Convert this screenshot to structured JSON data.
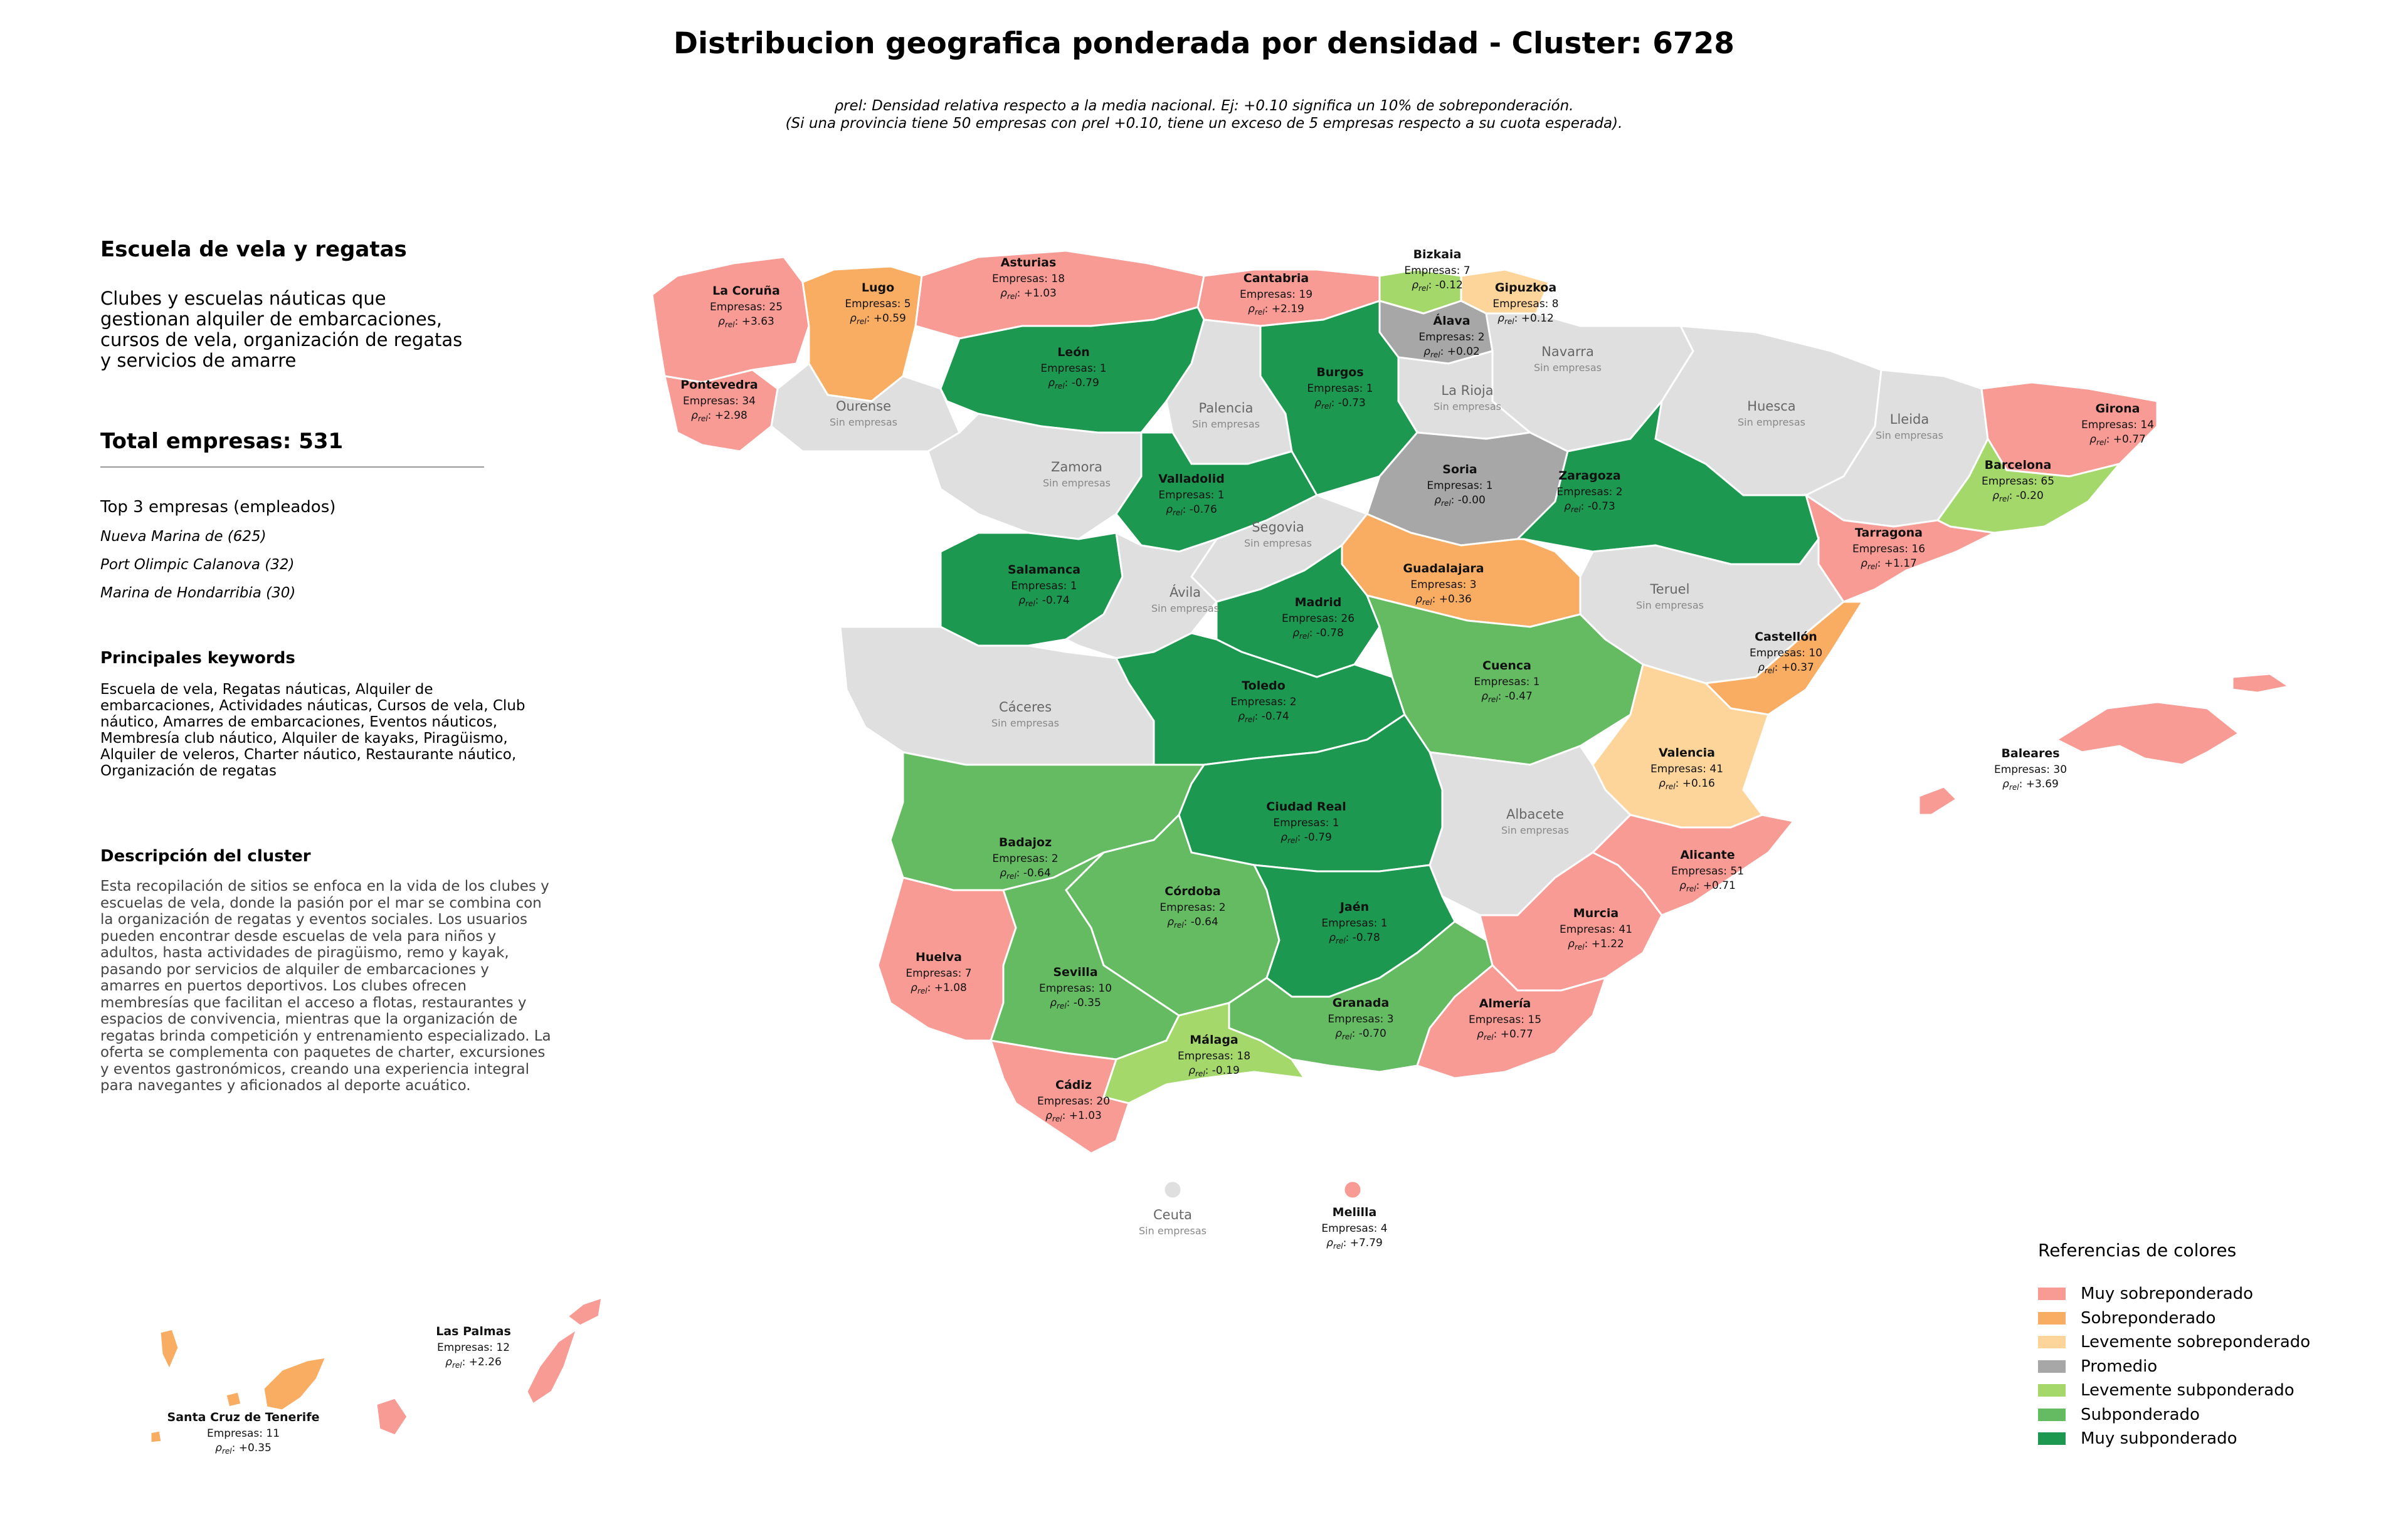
{
  "title": "Distribucion geografica ponderada por densidad - Cluster: 6728",
  "subtitle_line1": "ρrel: Densidad relativa respecto a la media nacional. Ej: +0.10 significa un 10% de sobreponderación.",
  "subtitle_line2": "(Si una provincia tiene 50 empresas con ρrel +0.10, tiene un exceso de 5 empresas respecto a su cuota esperada).",
  "panel": {
    "cluster_name": "Escuela de vela y regatas",
    "cluster_summary": "Clubes y escuelas náuticas que gestionan alquiler de embarcaciones, cursos de vela, organización de regatas y servicios de amarre",
    "total": "Total empresas: 531",
    "top_heading": "Top 3 empresas (empleados)",
    "top_companies": [
      "Nueva Marina de (625)",
      "Port Olimpic Calanova (32)",
      "Marina de Hondarribia (30)"
    ],
    "keywords_heading": "Principales keywords",
    "keywords": "Escuela de vela, Regatas náuticas, Alquiler de embarcaciones, Actividades náuticas, Cursos de vela, Club náutico, Amarres de embarcaciones, Eventos náuticos, Membresía club náutico, Alquiler de kayaks, Piragüismo, Alquiler de veleros, Charter náutico, Restaurante náutico, Organización de regatas",
    "description_heading": "Descripción del cluster",
    "description": "Esta recopilación de sitios se enfoca en la vida de los clubes y escuelas de vela, donde la pasión por el mar se combina con la organización de regatas y eventos sociales. Los usuarios pueden encontrar desde escuelas de vela para niños y adultos, hasta actividades de piragüismo, remo y kayak, pasando por servicios de alquiler de embarcaciones y amarres en puertos deportivos. Los clubes ofrecen membresías que facilitan el acceso a flotas, restaurantes y espacios de convivencia, mientras que la organización de regatas brinda competición y entrenamiento especializado. La oferta se complementa con paquetes de charter, excursiones y eventos gastronómicos, creando una experiencia integral para navegantes y aficionados al deporte acuático."
  },
  "colors": {
    "muy_sobre": "#f89b94",
    "sobre": "#f9ad63",
    "lev_sobre": "#fdd59a",
    "promedio": "#a7a7a7",
    "lev_sub": "#a5d86b",
    "sub": "#65bb61",
    "muy_sub": "#1c9850",
    "sin": "#dfdfdf"
  },
  "legend": {
    "title": "Referencias de colores",
    "items": [
      {
        "label": "Muy sobreponderado",
        "color": "#f89b94"
      },
      {
        "label": "Sobreponderado",
        "color": "#f9ad63"
      },
      {
        "label": "Levemente sobreponderado",
        "color": "#fdd59a"
      },
      {
        "label": "Promedio",
        "color": "#a7a7a7"
      },
      {
        "label": "Levemente subponderado",
        "color": "#a5d86b"
      },
      {
        "label": "Subponderado",
        "color": "#65bb61"
      },
      {
        "label": "Muy subponderado",
        "color": "#1c9850"
      }
    ]
  },
  "provinces": [
    {
      "name": "La Coruña",
      "count": "Empresas: 25",
      "rho": "+3.63",
      "cat": "muy_sobre"
    },
    {
      "name": "Lugo",
      "count": "Empresas: 5",
      "rho": "+0.59",
      "cat": "sobre"
    },
    {
      "name": "Asturias",
      "count": "Empresas: 18",
      "rho": "+1.03",
      "cat": "muy_sobre"
    },
    {
      "name": "Cantabria",
      "count": "Empresas: 19",
      "rho": "+2.19",
      "cat": "muy_sobre"
    },
    {
      "name": "Bizkaia",
      "count": "Empresas: 7",
      "rho": "-0.12",
      "cat": "lev_sub"
    },
    {
      "name": "Gipuzkoa",
      "count": "Empresas: 8",
      "rho": "+0.12",
      "cat": "lev_sobre"
    },
    {
      "name": "Álava",
      "count": "Empresas: 2",
      "rho": "+0.02",
      "cat": "promedio"
    },
    {
      "name": "Pontevedra",
      "count": "Empresas: 34",
      "rho": "+2.98",
      "cat": "muy_sobre"
    },
    {
      "name": "León",
      "count": "Empresas: 1",
      "rho": "-0.79",
      "cat": "muy_sub"
    },
    {
      "name": "Burgos",
      "count": "Empresas: 1",
      "rho": "-0.73",
      "cat": "muy_sub"
    },
    {
      "name": "Girona",
      "count": "Empresas: 14",
      "rho": "+0.77",
      "cat": "muy_sobre"
    },
    {
      "name": "Barcelona",
      "count": "Empresas: 65",
      "rho": "-0.20",
      "cat": "lev_sub"
    },
    {
      "name": "Valladolid",
      "count": "Empresas: 1",
      "rho": "-0.76",
      "cat": "muy_sub"
    },
    {
      "name": "Soria",
      "count": "Empresas: 1",
      "rho": "-0.00",
      "cat": "promedio"
    },
    {
      "name": "Zaragoza",
      "count": "Empresas: 2",
      "rho": "-0.73",
      "cat": "muy_sub"
    },
    {
      "name": "Tarragona",
      "count": "Empresas: 16",
      "rho": "+1.17",
      "cat": "muy_sobre"
    },
    {
      "name": "Salamanca",
      "count": "Empresas: 1",
      "rho": "-0.74",
      "cat": "muy_sub"
    },
    {
      "name": "Guadalajara",
      "count": "Empresas: 3",
      "rho": "+0.36",
      "cat": "sobre"
    },
    {
      "name": "Madrid",
      "count": "Empresas: 26",
      "rho": "-0.78",
      "cat": "muy_sub"
    },
    {
      "name": "Castellón",
      "count": "Empresas: 10",
      "rho": "+0.37",
      "cat": "sobre"
    },
    {
      "name": "Cuenca",
      "count": "Empresas: 1",
      "rho": "-0.47",
      "cat": "sub"
    },
    {
      "name": "Toledo",
      "count": "Empresas: 2",
      "rho": "-0.74",
      "cat": "muy_sub"
    },
    {
      "name": "Valencia",
      "count": "Empresas: 41",
      "rho": "+0.16",
      "cat": "lev_sobre"
    },
    {
      "name": "Baleares",
      "count": "Empresas: 30",
      "rho": "+3.69",
      "cat": "muy_sobre"
    },
    {
      "name": "Ciudad Real",
      "count": "Empresas: 1",
      "rho": "-0.79",
      "cat": "muy_sub"
    },
    {
      "name": "Badajoz",
      "count": "Empresas: 2",
      "rho": "-0.64",
      "cat": "sub"
    },
    {
      "name": "Alicante",
      "count": "Empresas: 51",
      "rho": "+0.71",
      "cat": "muy_sobre"
    },
    {
      "name": "Córdoba",
      "count": "Empresas: 2",
      "rho": "-0.64",
      "cat": "sub"
    },
    {
      "name": "Jaén",
      "count": "Empresas: 1",
      "rho": "-0.78",
      "cat": "muy_sub"
    },
    {
      "name": "Murcia",
      "count": "Empresas: 41",
      "rho": "+1.22",
      "cat": "muy_sobre"
    },
    {
      "name": "Huelva",
      "count": "Empresas: 7",
      "rho": "+1.08",
      "cat": "muy_sobre"
    },
    {
      "name": "Sevilla",
      "count": "Empresas: 10",
      "rho": "-0.35",
      "cat": "sub"
    },
    {
      "name": "Granada",
      "count": "Empresas: 3",
      "rho": "-0.70",
      "cat": "sub"
    },
    {
      "name": "Almería",
      "count": "Empresas: 15",
      "rho": "+0.77",
      "cat": "muy_sobre"
    },
    {
      "name": "Málaga",
      "count": "Empresas: 18",
      "rho": "-0.19",
      "cat": "lev_sub"
    },
    {
      "name": "Cádiz",
      "count": "Empresas: 20",
      "rho": "+1.03",
      "cat": "muy_sobre"
    },
    {
      "name": "Melilla",
      "count": "Empresas: 4",
      "rho": "+7.79",
      "cat": "muy_sobre"
    },
    {
      "name": "Las Palmas",
      "count": "Empresas: 12",
      "rho": "+2.26",
      "cat": "muy_sobre"
    },
    {
      "name": "Santa Cruz de Tenerife",
      "count": "Empresas: 11",
      "rho": "+0.35",
      "cat": "sobre"
    }
  ],
  "empty_provinces": {
    "no_data_label": "Sin empresas",
    "names": [
      "Ourense",
      "Palencia",
      "La Rioja",
      "Navarra",
      "Huesca",
      "Lleida",
      "Zamora",
      "Segovia",
      "Ávila",
      "Teruel",
      "Cáceres",
      "Albacete",
      "Ceuta"
    ]
  }
}
